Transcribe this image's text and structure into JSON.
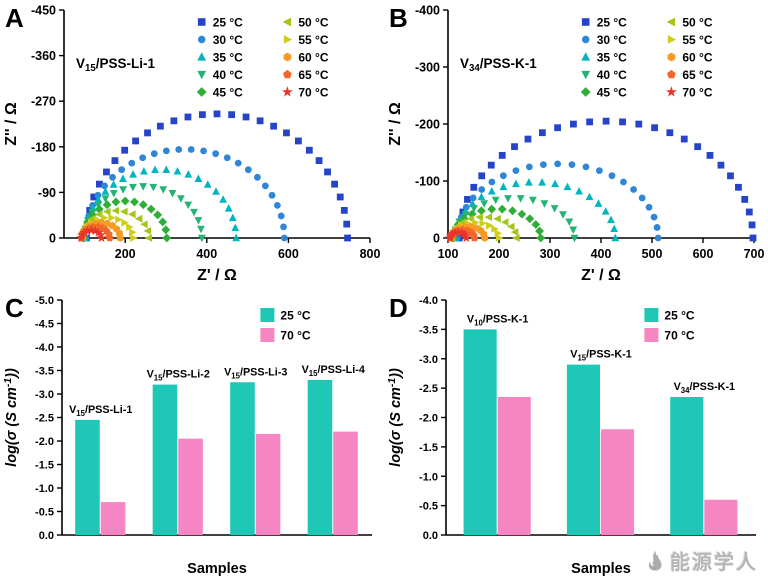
{
  "watermark": {
    "icon": "flame-logo-icon",
    "text": "能源学人"
  },
  "chart_data": [
    {
      "id": "A",
      "panel_label": "A",
      "type": "scatter",
      "annotation": "V~15~/PSS-Li-1",
      "xlabel": "Z' / Ω",
      "ylabel": "Z'' / Ω",
      "xlim": [
        50,
        800
      ],
      "xticks": [
        200,
        400,
        600,
        800
      ],
      "ylim": [
        0,
        -450
      ],
      "yticks": [
        0,
        -90,
        -180,
        -270,
        -360,
        -450
      ],
      "legend_position": "top-right-two-columns",
      "series": [
        {
          "name": "25 °C",
          "marker": "square",
          "color": "#2644c8",
          "arc": {
            "start": 105,
            "end": 745,
            "peak": -245
          }
        },
        {
          "name": "30 °C",
          "marker": "circle",
          "color": "#2f86d6",
          "arc": {
            "start": 103,
            "end": 590,
            "peak": -175
          }
        },
        {
          "name": "35 °C",
          "marker": "triangle-up",
          "color": "#00b4c0",
          "arc": {
            "start": 102,
            "end": 472,
            "peak": -135
          }
        },
        {
          "name": "40 °C",
          "marker": "triangle-down",
          "color": "#21b573",
          "arc": {
            "start": 100,
            "end": 388,
            "peak": -102
          }
        },
        {
          "name": "45 °C",
          "marker": "diamond",
          "color": "#2fae37",
          "arc": {
            "start": 98,
            "end": 302,
            "peak": -73
          }
        },
        {
          "name": "50 °C",
          "marker": "triangle-left",
          "color": "#a4c51a",
          "arc": {
            "start": 96,
            "end": 258,
            "peak": -54
          }
        },
        {
          "name": "55 °C",
          "marker": "triangle-right",
          "color": "#cfcf1b",
          "arc": {
            "start": 95,
            "end": 220,
            "peak": -40
          }
        },
        {
          "name": "60 °C",
          "marker": "hexagon",
          "color": "#f59a23",
          "arc": {
            "start": 94,
            "end": 188,
            "peak": -30
          }
        },
        {
          "name": "65 °C",
          "marker": "pentagon",
          "color": "#f2672a",
          "arc": {
            "start": 93,
            "end": 162,
            "peak": -22
          }
        },
        {
          "name": "70 °C",
          "marker": "star",
          "color": "#e8342a",
          "arc": {
            "start": 92,
            "end": 142,
            "peak": -15
          }
        }
      ]
    },
    {
      "id": "B",
      "panel_label": "B",
      "type": "scatter",
      "annotation": "V~34~/PSS-K-1",
      "xlabel": "Z' / Ω",
      "ylabel": "Z'' / Ω",
      "xlim": [
        100,
        700
      ],
      "xticks": [
        100,
        200,
        300,
        400,
        500,
        600,
        700
      ],
      "ylim": [
        0,
        -400
      ],
      "yticks": [
        0,
        -100,
        -200,
        -300,
        -400
      ],
      "legend_position": "top-right-two-columns",
      "series": [
        {
          "name": "25 °C",
          "marker": "square",
          "color": "#2644c8",
          "arc": {
            "start": 122,
            "end": 698,
            "peak": -205
          }
        },
        {
          "name": "30 °C",
          "marker": "circle",
          "color": "#2f86d6",
          "arc": {
            "start": 118,
            "end": 512,
            "peak": -130
          }
        },
        {
          "name": "35 °C",
          "marker": "triangle-up",
          "color": "#00b4c0",
          "arc": {
            "start": 115,
            "end": 428,
            "peak": -98
          }
        },
        {
          "name": "40 °C",
          "marker": "triangle-down",
          "color": "#21b573",
          "arc": {
            "start": 112,
            "end": 348,
            "peak": -70
          }
        },
        {
          "name": "45 °C",
          "marker": "diamond",
          "color": "#2fae37",
          "arc": {
            "start": 110,
            "end": 282,
            "peak": -51
          }
        },
        {
          "name": "50 °C",
          "marker": "triangle-left",
          "color": "#a4c51a",
          "arc": {
            "start": 108,
            "end": 234,
            "peak": -37
          }
        },
        {
          "name": "55 °C",
          "marker": "triangle-right",
          "color": "#cfcf1b",
          "arc": {
            "start": 107,
            "end": 200,
            "peak": -27
          }
        },
        {
          "name": "60 °C",
          "marker": "hexagon",
          "color": "#f59a23",
          "arc": {
            "start": 106,
            "end": 172,
            "peak": -20
          }
        },
        {
          "name": "65 °C",
          "marker": "pentagon",
          "color": "#f2672a",
          "arc": {
            "start": 105,
            "end": 152,
            "peak": -14
          }
        },
        {
          "name": "70 °C",
          "marker": "star",
          "color": "#e8342a",
          "arc": {
            "start": 104,
            "end": 136,
            "peak": -10
          }
        }
      ]
    },
    {
      "id": "C",
      "panel_label": "C",
      "type": "bar",
      "xlabel": "Samples",
      "ylabel": "log(σ (S cm^{-1}))",
      "ylim": [
        0,
        -5.0
      ],
      "yticks": [
        0,
        -0.5,
        -1.0,
        -1.5,
        -2.0,
        -2.5,
        -3.0,
        -3.5,
        -4.0,
        -4.5,
        -5.0
      ],
      "categories": [
        "V~15~/PSS-Li-1",
        "V~15~/PSS-Li-2",
        "V~15~/PSS-Li-3",
        "V~15~/PSS-Li-4"
      ],
      "legend_position": "top-right",
      "series": [
        {
          "name": "25 °C",
          "color": "#1fc7b7",
          "values": [
            -2.45,
            -3.2,
            -3.25,
            -3.3
          ]
        },
        {
          "name": "70 °C",
          "color": "#f585c3",
          "values": [
            -0.7,
            -2.05,
            -2.15,
            -2.2
          ]
        }
      ]
    },
    {
      "id": "D",
      "panel_label": "D",
      "type": "bar",
      "xlabel": "Samples",
      "ylabel": "log(σ (S cm^{-1}))",
      "ylim": [
        0,
        -4.0
      ],
      "yticks": [
        0,
        -0.5,
        -1.0,
        -1.5,
        -2.0,
        -2.5,
        -3.0,
        -3.5,
        -4.0
      ],
      "categories": [
        "V~10~/PSS-K-1",
        "V~15~/PSS-K-1",
        "V~34~/PSS-K-1"
      ],
      "legend_position": "top-right",
      "series": [
        {
          "name": "25 °C",
          "color": "#1fc7b7",
          "values": [
            -3.5,
            -2.9,
            -2.35
          ]
        },
        {
          "name": "70 °C",
          "color": "#f585c3",
          "values": [
            -2.35,
            -1.8,
            -0.6
          ]
        }
      ]
    }
  ]
}
